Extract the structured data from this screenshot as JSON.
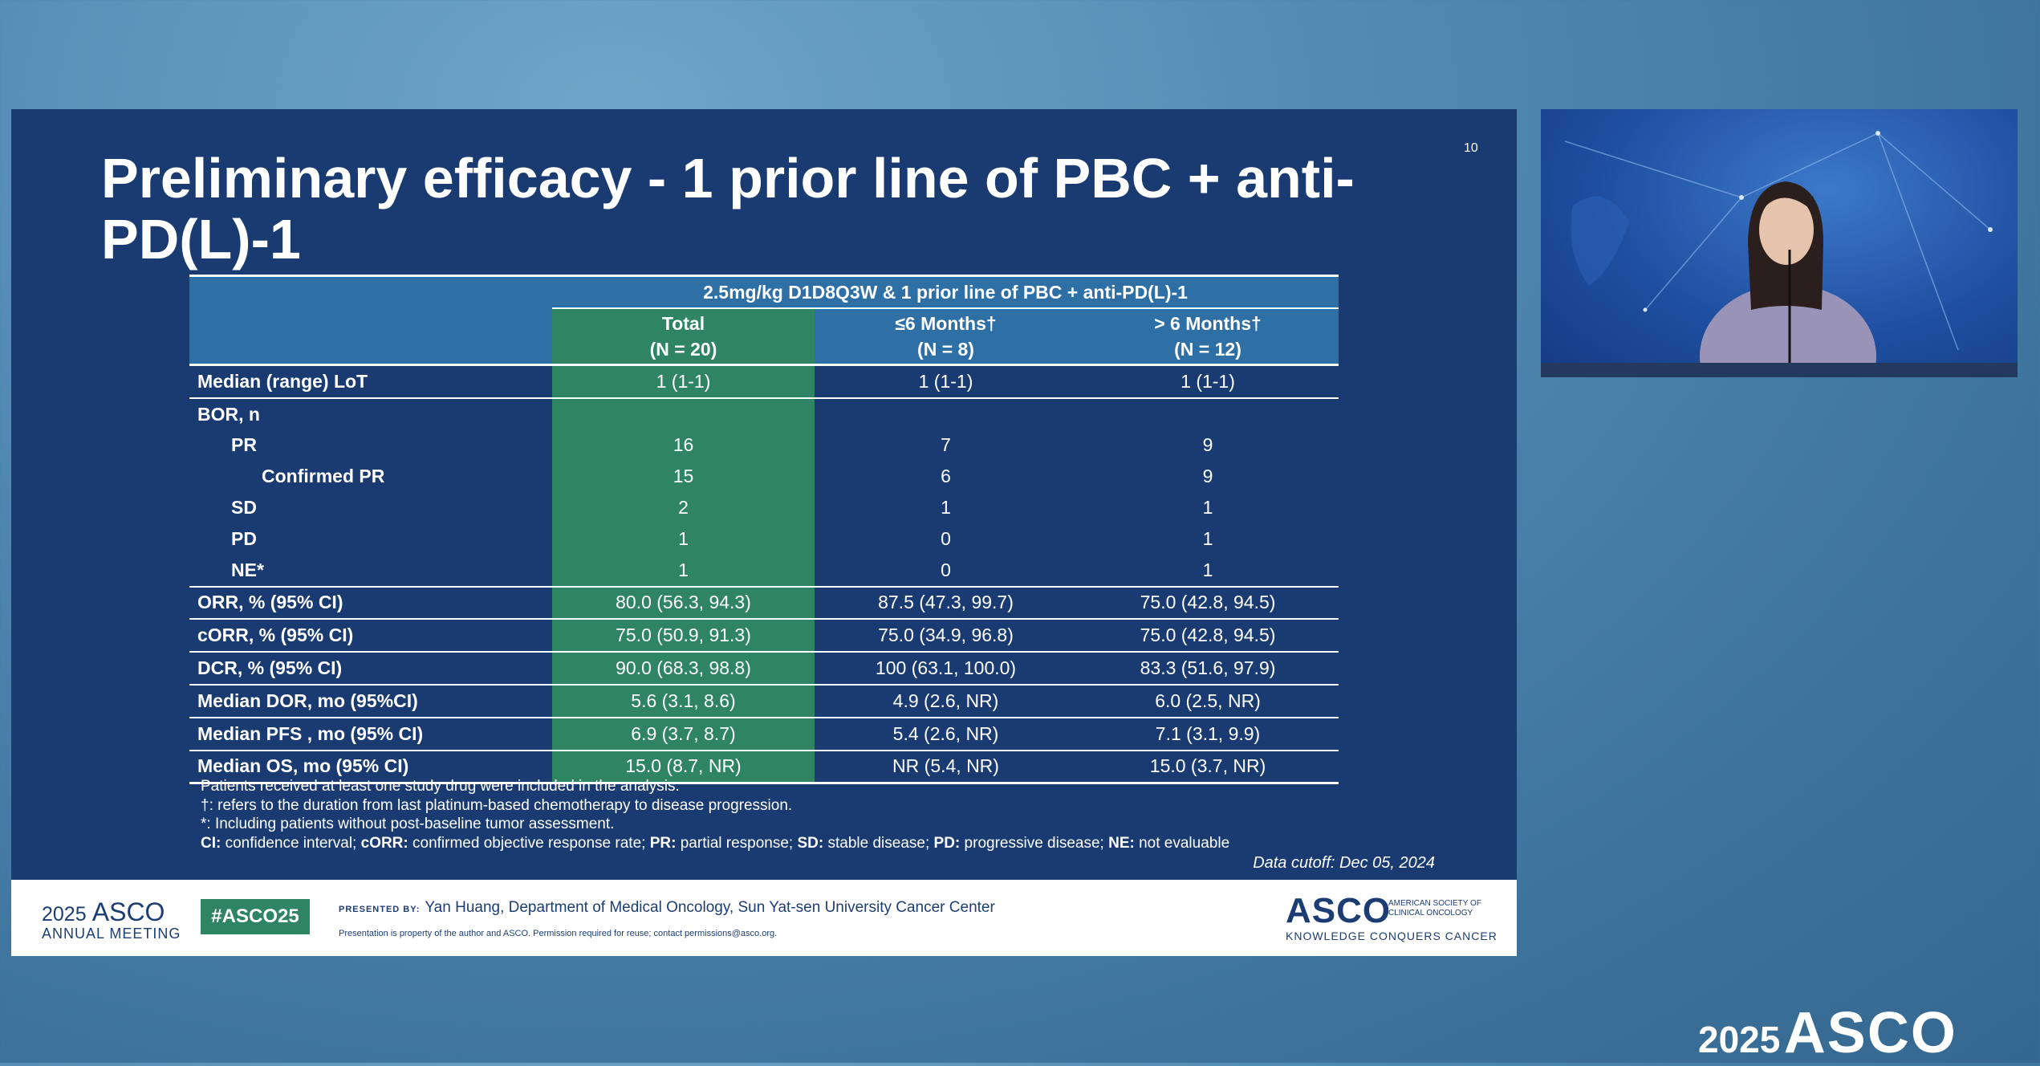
{
  "slide": {
    "title": "Preliminary efficacy - 1 prior line of PBC + anti-PD(L)-1",
    "page_number": "10",
    "table": {
      "span_header": "2.5mg/kg D1D8Q3W & 1 prior line of PBC + anti-PD(L)-1",
      "columns": [
        {
          "name": "Total",
          "n": "(N = 20)"
        },
        {
          "name": "≤6 Months†",
          "n": "(N = 8)"
        },
        {
          "name": "> 6 Months†",
          "n": "(N = 12)"
        }
      ],
      "rows": [
        {
          "label": "Median (range) LoT",
          "values": [
            "1 (1-1)",
            "1 (1-1)",
            "1 (1-1)"
          ]
        },
        {
          "label": "BOR, n",
          "values": [
            "",
            "",
            ""
          ]
        },
        {
          "label": "PR",
          "values": [
            "16",
            "7",
            "9"
          ]
        },
        {
          "label": "Confirmed PR",
          "values": [
            "15",
            "6",
            "9"
          ]
        },
        {
          "label": "SD",
          "values": [
            "2",
            "1",
            "1"
          ]
        },
        {
          "label": "PD",
          "values": [
            "1",
            "0",
            "1"
          ]
        },
        {
          "label": "NE*",
          "values": [
            "1",
            "0",
            "1"
          ]
        },
        {
          "label": "ORR, % (95% CI)",
          "values": [
            "80.0 (56.3, 94.3)",
            "87.5 (47.3, 99.7)",
            "75.0 (42.8, 94.5)"
          ]
        },
        {
          "label": "cORR, % (95% CI)",
          "values": [
            "75.0 (50.9, 91.3)",
            "75.0 (34.9, 96.8)",
            "75.0 (42.8, 94.5)"
          ]
        },
        {
          "label": "DCR, % (95% CI)",
          "values": [
            "90.0 (68.3, 98.8)",
            "100 (63.1, 100.0)",
            "83.3 (51.6, 97.9)"
          ]
        },
        {
          "label": "Median DOR, mo (95%CI)",
          "values": [
            "5.6 (3.1, 8.6)",
            "4.9 (2.6, NR)",
            "6.0 (2.5, NR)"
          ]
        },
        {
          "label": "Median PFS , mo (95% CI)",
          "values": [
            "6.9 (3.7, 8.7)",
            "5.4 (2.6, NR)",
            "7.1 (3.1, 9.9)"
          ]
        },
        {
          "label": "Median OS, mo (95% CI)",
          "values": [
            "15.0 (8.7, NR)",
            "NR (5.4, NR)",
            "15.0 (3.7, NR)"
          ]
        }
      ]
    },
    "notes": {
      "line1": "Patients received at least one study drug were included in the analysis.",
      "line2": "†: refers to the duration from last platinum-based chemotherapy to disease progression.",
      "line3": "*: Including patients without post-baseline tumor assessment.",
      "line4_parts": [
        [
          "CI:",
          " confidence interval; "
        ],
        [
          "cORR:",
          " confirmed objective response rate; "
        ],
        [
          "PR:",
          " partial response; "
        ],
        [
          "SD:",
          " stable disease; "
        ],
        [
          "PD:",
          " progressive disease; "
        ],
        [
          "NE:",
          " not evaluable"
        ]
      ],
      "cutoff": "Data cutoff: Dec 05, 2024"
    },
    "footer": {
      "year": "2025",
      "asco": "ASCO",
      "meeting": "ANNUAL MEETING",
      "hashtag": "#ASCO25",
      "presented_by": "PRESENTED BY:",
      "presenter": "Yan Huang, Department of Medical Oncology, Sun Yat-sen University Cancer Center",
      "property": "Presentation is property of the author and ASCO. Permission required for reuse; contact permissions@asco.org.",
      "society_logo": "ASCO",
      "society_name_1": "AMERICAN SOCIETY OF",
      "society_name_2": "CLINICAL ONCOLOGY",
      "tagline": "KNOWLEDGE CONQUERS CANCER"
    }
  },
  "watermark": {
    "year": "2025",
    "name": "ASCO"
  },
  "colors": {
    "slide_bg": "#1a3b72",
    "header_blue": "#2e6fa6",
    "total_green": "#2f8463"
  }
}
